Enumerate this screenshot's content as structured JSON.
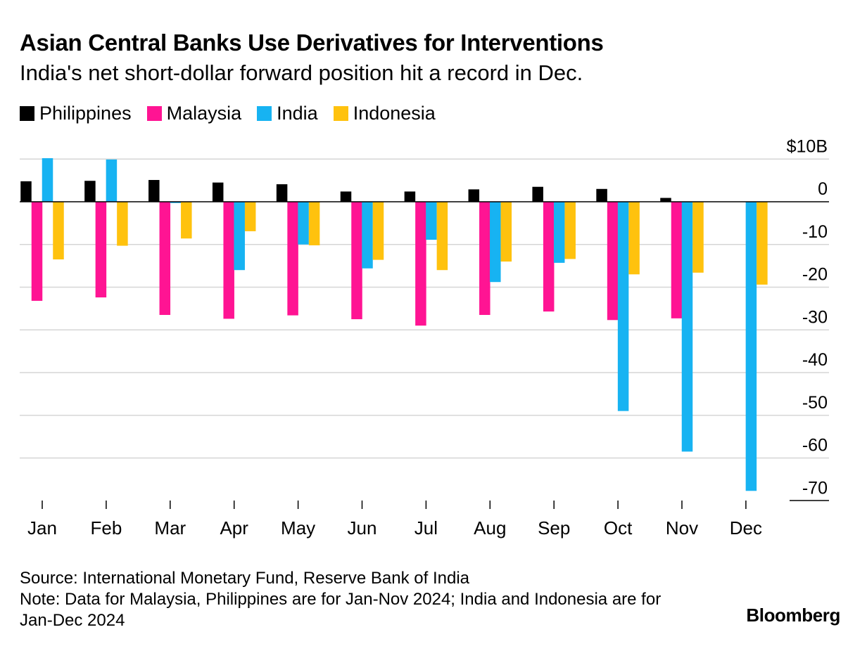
{
  "title": "Asian Central Banks Use Derivatives for Interventions",
  "subtitle": "India's net short-dollar forward position hit a record in Dec.",
  "footer": {
    "source": "Source: International Monetary Fund, Reserve Bank of India",
    "note": "Note: Data for Malaysia, Philippines are for Jan-Nov 2024; India and Indonesia are for Jan-Dec 2024"
  },
  "brand": "Bloomberg",
  "colors": {
    "Philippines": "#000000",
    "Malaysia": "#ff1493",
    "India": "#17b3f2",
    "Indonesia": "#ffc20e"
  },
  "chart_data": {
    "type": "bar",
    "title": "Asian Central Banks Use Derivatives for Interventions",
    "subtitle": "India's net short-dollar forward position hit a record in Dec.",
    "xlabel": "",
    "ylabel": "$B",
    "ylim": [
      -70,
      10
    ],
    "yticks": [
      10,
      0,
      -10,
      -20,
      -30,
      -40,
      -50,
      -60,
      -70
    ],
    "ytick_labels": [
      "$10B",
      "0",
      "-10",
      "-20",
      "-30",
      "-40",
      "-50",
      "-60",
      "-70"
    ],
    "grid": true,
    "legend_position": "top-left",
    "categories": [
      "Jan",
      "Feb",
      "Mar",
      "Apr",
      "May",
      "Jun",
      "Jul",
      "Aug",
      "Sep",
      "Oct",
      "Nov",
      "Dec"
    ],
    "series": [
      {
        "name": "Philippines",
        "values": [
          4.8,
          4.9,
          5.1,
          4.5,
          4.1,
          2.4,
          2.4,
          2.9,
          3.5,
          3.0,
          0.9,
          null
        ]
      },
      {
        "name": "Malaysia",
        "values": [
          -23.2,
          -22.4,
          -26.5,
          -27.4,
          -26.6,
          -27.5,
          -29.0,
          -26.5,
          -25.7,
          -27.7,
          -27.3,
          null
        ]
      },
      {
        "name": "India",
        "values": [
          10.2,
          9.9,
          -0.3,
          -16.0,
          -10.0,
          -15.6,
          -8.9,
          -18.8,
          -14.3,
          -49.0,
          -58.5,
          -67.7
        ]
      },
      {
        "name": "Indonesia",
        "values": [
          -13.5,
          -10.3,
          -8.6,
          -6.9,
          -10.2,
          -13.6,
          -16.0,
          -14.0,
          -13.4,
          -17.0,
          -16.6,
          -19.4
        ]
      }
    ]
  }
}
